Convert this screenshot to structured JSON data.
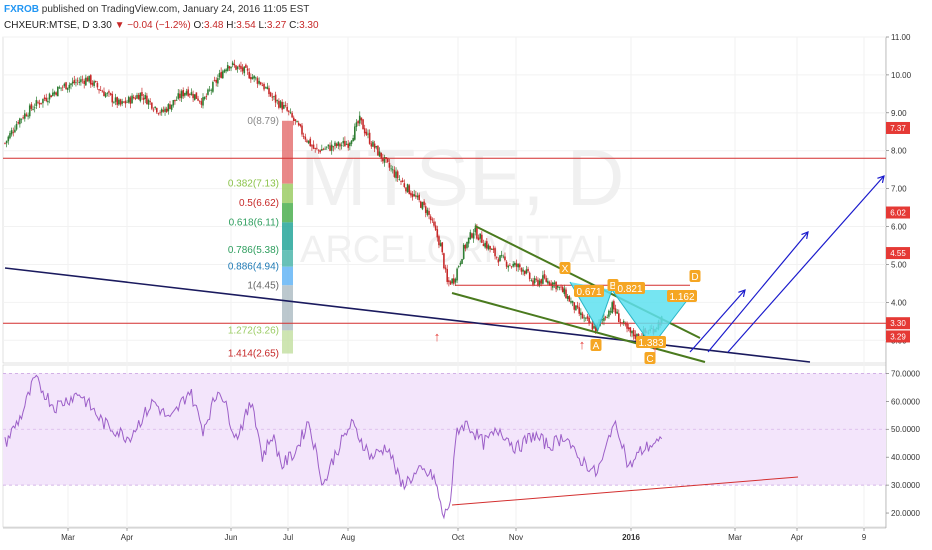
{
  "header": {
    "brand": "FXROB",
    "published": "published on TradingView.com, January 24, 2016 11:05 EST",
    "symbol": "CHXEUR:MTSE, D",
    "last": "3.30",
    "change": "−0.04 (−1.2%)",
    "o_label": "O:",
    "o": "3.48",
    "h_label": "H:",
    "h": "3.54",
    "l_label": "L:",
    "l": "3.27",
    "c_label": "C:",
    "c": "3.30"
  },
  "watermark": {
    "main": "MTSE, D",
    "sub": "ARCELORMITTAL"
  },
  "colors": {
    "up": "#2e7d32",
    "down": "#c62828",
    "blue": "#1a1acc",
    "navy": "#1a1a5e",
    "olive": "#4a7a1e",
    "cyan": "#5ee0f0",
    "orange": "#f5a623",
    "rsi": "#9c5fc8",
    "rsiband": "#f3e5fb"
  },
  "price_axis": {
    "ticks": [
      "11.00",
      "10.00",
      "9.00",
      "8.00",
      "7.00",
      "6.00",
      "5.00",
      "4.00",
      "3.00"
    ],
    "badges": [
      {
        "value": "7.37",
        "price": 8.6
      },
      {
        "value": "6.02",
        "price": 6.37
      },
      {
        "value": "4.55",
        "price": 5.3
      },
      {
        "value": "3.30",
        "price": 3.45
      },
      {
        "value": "3.29",
        "price": 3.1
      }
    ]
  },
  "rsi_axis": {
    "ticks": [
      "70.0000",
      "60.0000",
      "50.0000",
      "40.0000",
      "30.0000",
      "20.0000"
    ]
  },
  "date_axis": [
    {
      "label": "Mar",
      "x": 68
    },
    {
      "label": "Apr",
      "x": 127
    },
    {
      "label": "Jun",
      "x": 231
    },
    {
      "label": "Jul",
      "x": 288
    },
    {
      "label": "Aug",
      "x": 348
    },
    {
      "label": "Oct",
      "x": 458
    },
    {
      "label": "Nov",
      "x": 516
    },
    {
      "label": "2016",
      "x": 631
    },
    {
      "label": "Mar",
      "x": 735
    },
    {
      "label": "Apr",
      "x": 797
    },
    {
      "label": "9",
      "x": 864
    }
  ],
  "fib_levels": [
    {
      "label": "0(8.79)",
      "price": 8.79,
      "color": "#888888"
    },
    {
      "label": "0.382(7.13)",
      "price": 7.13,
      "color": "#8bc34a"
    },
    {
      "label": "0.5(6.62)",
      "price": 6.62,
      "color": "#c62828"
    },
    {
      "label": "0.618(6.11)",
      "price": 6.11,
      "color": "#2e9e5e"
    },
    {
      "label": "0.786(5.38)",
      "price": 5.38,
      "color": "#2e9e5e"
    },
    {
      "label": "0.886(4.94)",
      "price": 4.94,
      "color": "#1f7ab5"
    },
    {
      "label": "1(4.45)",
      "price": 4.45,
      "color": "#666666"
    },
    {
      "label": "1.272(3.26)",
      "price": 3.26,
      "color": "#9ccc65"
    },
    {
      "label": "1.414(2.65)",
      "price": 2.65,
      "color": "#c62828"
    }
  ],
  "pattern_labels": [
    {
      "text": "X",
      "x": 565,
      "y": 268
    },
    {
      "text": "A",
      "x": 596,
      "y": 345
    },
    {
      "text": "B",
      "x": 613,
      "y": 285
    },
    {
      "text": "C",
      "x": 650,
      "y": 358
    },
    {
      "text": "D",
      "x": 695,
      "y": 276
    },
    {
      "text": "0.671",
      "x": 589,
      "y": 291
    },
    {
      "text": "0.821",
      "x": 630,
      "y": 288
    },
    {
      "text": "1.162",
      "x": 682,
      "y": 296
    },
    {
      "text": "1.383",
      "x": 651,
      "y": 342
    }
  ],
  "chart_data": {
    "type": "candlestick",
    "x_range": [
      "2015-01-20",
      "2016-04-20"
    ],
    "price_ylim": [
      2.4,
      11.0
    ],
    "rsi_ylim": [
      15,
      73
    ],
    "rsi_band": [
      30,
      70
    ],
    "price_anchors": [
      [
        0,
        8.2
      ],
      [
        8,
        8.8
      ],
      [
        18,
        9.2
      ],
      [
        35,
        9.7
      ],
      [
        50,
        9.9
      ],
      [
        58,
        9.6
      ],
      [
        70,
        9.2
      ],
      [
        82,
        9.5
      ],
      [
        95,
        9.0
      ],
      [
        110,
        9.6
      ],
      [
        120,
        9.3
      ],
      [
        135,
        10.3
      ],
      [
        145,
        10.1
      ],
      [
        155,
        9.8
      ],
      [
        162,
        9.4
      ],
      [
        170,
        9.1
      ],
      [
        178,
        8.6
      ],
      [
        188,
        8.0
      ],
      [
        198,
        8.1
      ],
      [
        208,
        8.2
      ],
      [
        215,
        8.8
      ],
      [
        222,
        8.2
      ],
      [
        232,
        7.6
      ],
      [
        240,
        7.2
      ],
      [
        248,
        6.8
      ],
      [
        256,
        6.4
      ],
      [
        264,
        5.5
      ],
      [
        268,
        4.5
      ],
      [
        272,
        4.6
      ],
      [
        278,
        5.4
      ],
      [
        284,
        5.9
      ],
      [
        290,
        5.6
      ],
      [
        298,
        5.2
      ],
      [
        306,
        5.0
      ],
      [
        314,
        4.9
      ],
      [
        320,
        4.5
      ],
      [
        326,
        4.6
      ],
      [
        333,
        4.5
      ],
      [
        340,
        4.2
      ],
      [
        346,
        3.8
      ],
      [
        352,
        3.5
      ],
      [
        358,
        3.3
      ],
      [
        363,
        3.6
      ],
      [
        368,
        3.9
      ],
      [
        373,
        3.5
      ],
      [
        378,
        3.2
      ],
      [
        383,
        3.1
      ],
      [
        388,
        3.2
      ],
      [
        393,
        3.3
      ],
      [
        398,
        3.55
      ]
    ],
    "rsi_anchors": [
      [
        0,
        45
      ],
      [
        10,
        55
      ],
      [
        18,
        68
      ],
      [
        30,
        58
      ],
      [
        45,
        63
      ],
      [
        60,
        52
      ],
      [
        75,
        47
      ],
      [
        90,
        60
      ],
      [
        100,
        53
      ],
      [
        112,
        64
      ],
      [
        120,
        50
      ],
      [
        130,
        65
      ],
      [
        140,
        47
      ],
      [
        150,
        60
      ],
      [
        156,
        40
      ],
      [
        162,
        48
      ],
      [
        168,
        37
      ],
      [
        176,
        42
      ],
      [
        184,
        53
      ],
      [
        193,
        30
      ],
      [
        200,
        41
      ],
      [
        210,
        52
      ],
      [
        222,
        40
      ],
      [
        232,
        44
      ],
      [
        240,
        30
      ],
      [
        252,
        35
      ],
      [
        260,
        33
      ],
      [
        266,
        18
      ],
      [
        270,
        25
      ],
      [
        274,
        50
      ],
      [
        280,
        52
      ],
      [
        290,
        45
      ],
      [
        300,
        50
      ],
      [
        310,
        43
      ],
      [
        320,
        48
      ],
      [
        330,
        44
      ],
      [
        340,
        48
      ],
      [
        346,
        40
      ],
      [
        352,
        38
      ],
      [
        358,
        34
      ],
      [
        363,
        40
      ],
      [
        368,
        52
      ],
      [
        373,
        48
      ],
      [
        378,
        36
      ],
      [
        385,
        42
      ],
      [
        393,
        45
      ],
      [
        398,
        45
      ]
    ],
    "annotations": {
      "resistance_level": 7.8,
      "support_level": 3.45,
      "pattern": "bat (XABCD)"
    }
  }
}
